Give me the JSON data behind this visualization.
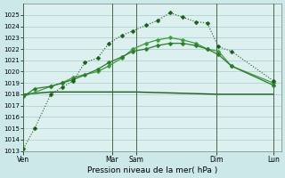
{
  "background_color": "#cce8e8",
  "grid_color": "#aacccc",
  "plot_bg": "#ddf0f0",
  "line1_color": "#1a5c1a",
  "line2_color": "#2d7a2d",
  "line3_color": "#3d9c3d",
  "line4_color": "#1a5c1a",
  "ylim": [
    1013,
    1026
  ],
  "yticks": [
    1013,
    1014,
    1015,
    1016,
    1017,
    1018,
    1019,
    1020,
    1021,
    1022,
    1023,
    1024,
    1025
  ],
  "xlabel": "Pression niveau de la mer( hPa )",
  "xtick_positions": [
    0,
    55,
    70,
    120,
    155
  ],
  "xtick_labels": [
    "Ven",
    "Mar",
    "Sam",
    "Dim",
    "Lun"
  ],
  "vline_positions": [
    0,
    55,
    70,
    120,
    155
  ],
  "series1_x": [
    0,
    7,
    17,
    24,
    31,
    38,
    46,
    53,
    61,
    68,
    76,
    83,
    91,
    99,
    107,
    114,
    121,
    129,
    155
  ],
  "series1_y": [
    1013.2,
    1015.0,
    1018.0,
    1018.6,
    1019.2,
    1020.8,
    1021.2,
    1022.5,
    1023.2,
    1023.6,
    1024.1,
    1024.5,
    1025.2,
    1024.8,
    1024.4,
    1024.3,
    1022.2,
    1021.8,
    1019.2
  ],
  "series2_x": [
    0,
    7,
    17,
    24,
    31,
    38,
    46,
    53,
    61,
    68,
    76,
    83,
    91,
    99,
    107,
    114,
    121,
    129,
    155
  ],
  "series2_y": [
    1017.8,
    1018.5,
    1018.7,
    1019.0,
    1019.3,
    1019.7,
    1020.2,
    1020.8,
    1021.3,
    1021.8,
    1022.0,
    1022.3,
    1022.5,
    1022.5,
    1022.3,
    1022.0,
    1021.5,
    1020.5,
    1018.8
  ],
  "series3_x": [
    0,
    17,
    24,
    31,
    46,
    53,
    61,
    68,
    76,
    83,
    91,
    99,
    107,
    114,
    121,
    129,
    155
  ],
  "series3_y": [
    1017.8,
    1018.7,
    1019.0,
    1019.5,
    1020.0,
    1020.5,
    1021.2,
    1022.0,
    1022.5,
    1022.8,
    1023.0,
    1022.8,
    1022.5,
    1022.0,
    1021.8,
    1020.5,
    1019.0
  ],
  "series4_x": [
    0,
    17,
    55,
    70,
    121,
    155
  ],
  "series4_y": [
    1018.0,
    1018.2,
    1018.2,
    1018.2,
    1018.0,
    1018.0
  ]
}
